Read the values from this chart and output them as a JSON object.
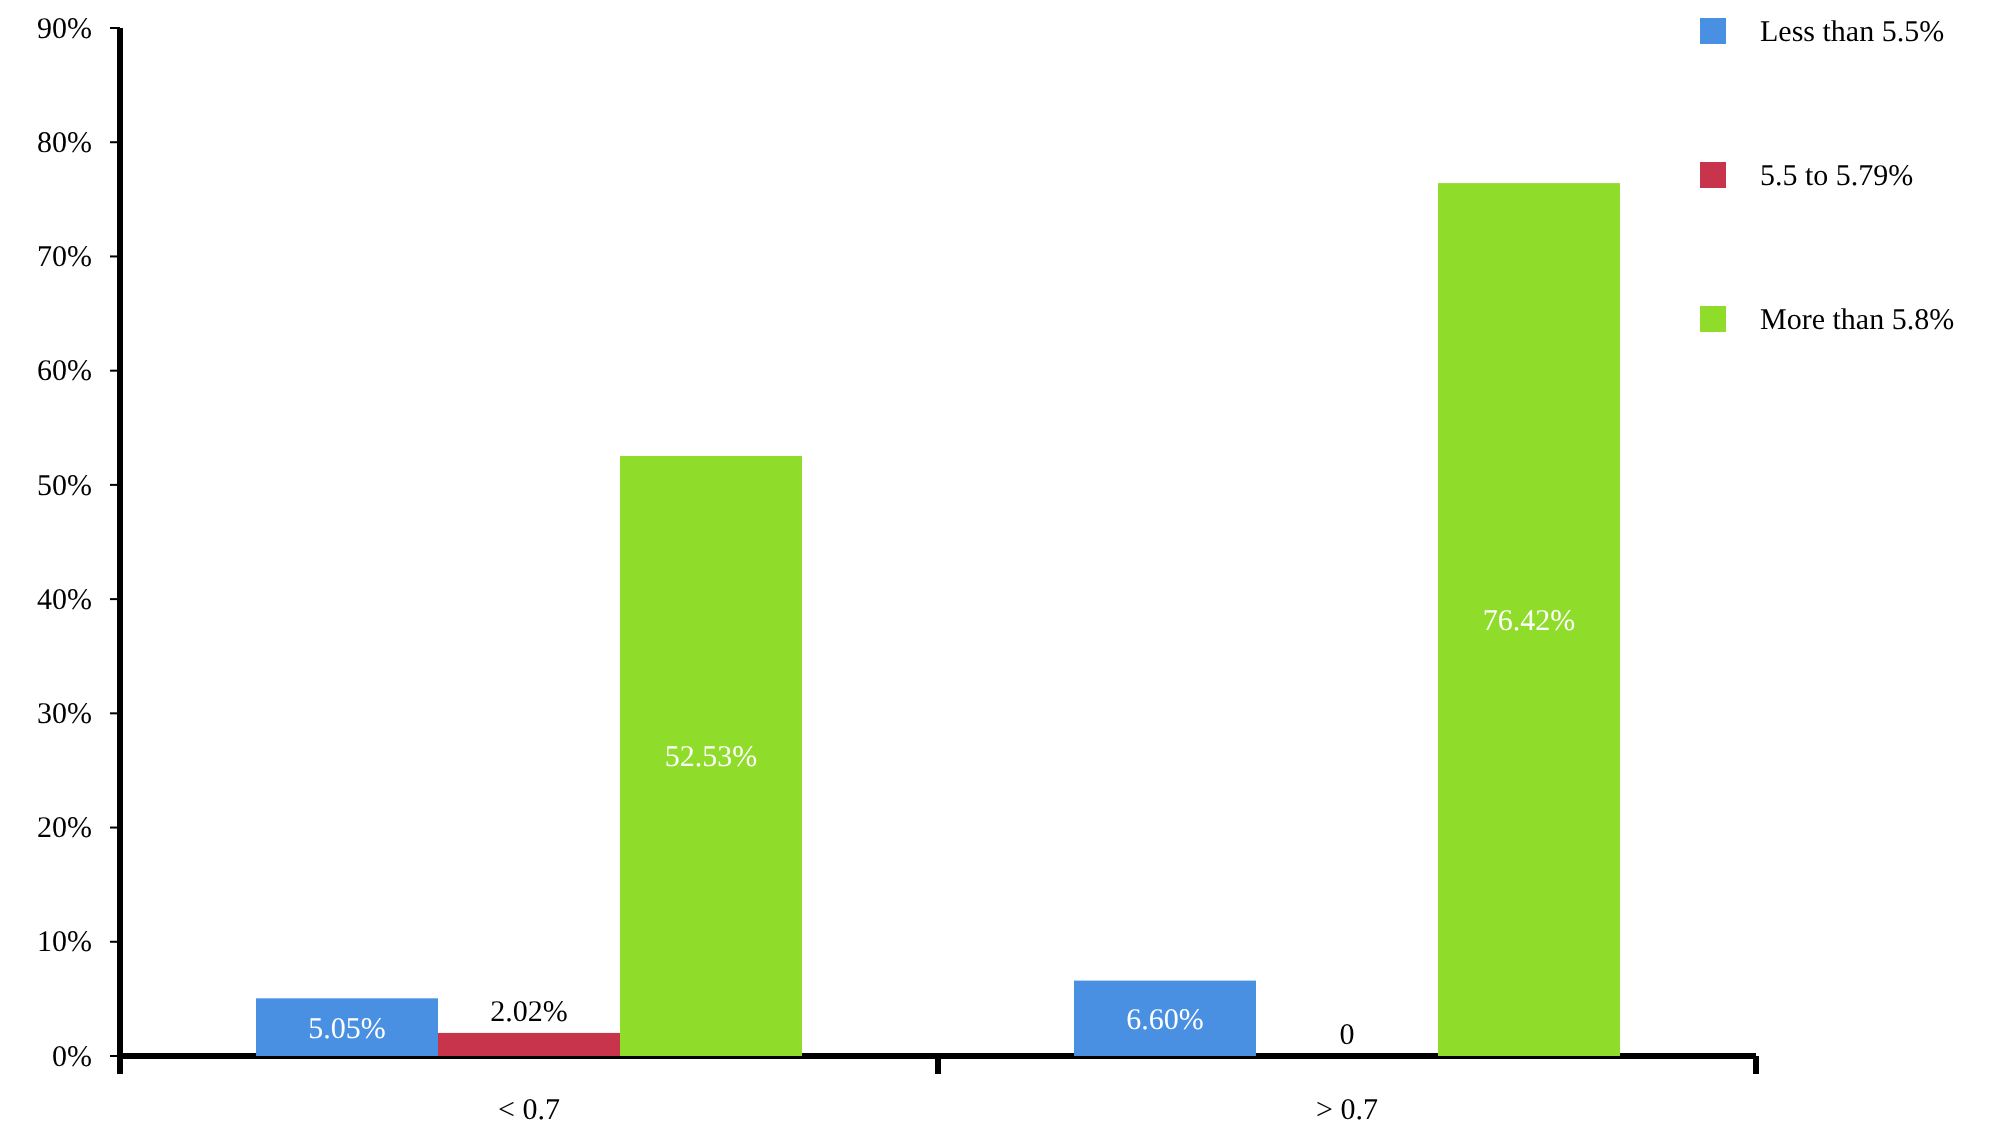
{
  "chart_data": {
    "type": "bar",
    "categories": [
      "< 0.7",
      "> 0.7"
    ],
    "series": [
      {
        "name": "Less than 5.5%",
        "color": "#4a90e2",
        "values": [
          5.05,
          6.6
        ],
        "value_labels": [
          "5.05%",
          "6.60%"
        ]
      },
      {
        "name": "5.5 to 5.79%",
        "color": "#c8344b",
        "values": [
          2.02,
          0
        ],
        "value_labels": [
          "2.02%",
          "0"
        ]
      },
      {
        "name": "More than 5.8%",
        "color": "#8fdc2b",
        "values": [
          52.53,
          76.42
        ],
        "value_labels": [
          "52.53%",
          "76.42%"
        ]
      }
    ],
    "ylim": [
      0,
      90
    ],
    "yticks": [
      {
        "value": 0,
        "label": "0%"
      },
      {
        "value": 10,
        "label": "10%"
      },
      {
        "value": 20,
        "label": "20%"
      },
      {
        "value": 30,
        "label": "30%"
      },
      {
        "value": 40,
        "label": "40%"
      },
      {
        "value": 50,
        "label": "50%"
      },
      {
        "value": 60,
        "label": "60%"
      },
      {
        "value": 70,
        "label": "70%"
      },
      {
        "value": 80,
        "label": "80%"
      },
      {
        "value": 90,
        "label": "90%"
      }
    ],
    "grid": false,
    "legend": "top right"
  }
}
